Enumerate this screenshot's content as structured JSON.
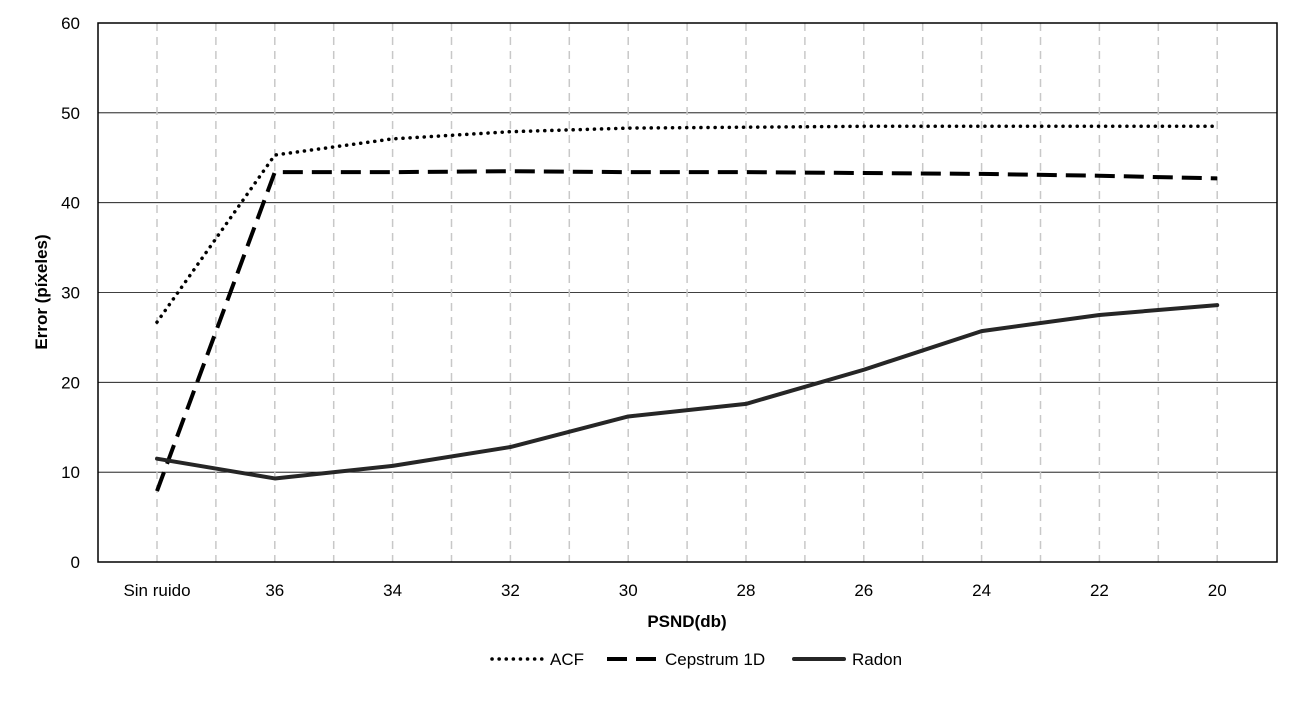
{
  "chart_data": {
    "type": "line",
    "title": "",
    "xlabel": "PSND(db)",
    "ylabel": "Error (píxeles)",
    "categories": [
      "Sin ruido",
      "36",
      "34",
      "32",
      "30",
      "28",
      "26",
      "24",
      "22",
      "20"
    ],
    "ylim": [
      0,
      60
    ],
    "yticks": [
      0,
      10,
      20,
      30,
      40,
      50,
      60
    ],
    "grid": {
      "horizontal": "solid",
      "vertical": "dashed, including midpoints"
    },
    "legend_position": "bottom",
    "series": [
      {
        "name": "ACF",
        "style": "dotted",
        "color": "#000000",
        "values": [
          26.7,
          45.3,
          47.1,
          47.9,
          48.3,
          48.4,
          48.5,
          48.5,
          48.5,
          48.5
        ]
      },
      {
        "name": "Cepstrum 1D",
        "style": "dashed",
        "color": "#000000",
        "values": [
          7.9,
          43.4,
          43.4,
          43.5,
          43.4,
          43.4,
          43.3,
          43.2,
          43.0,
          42.7
        ]
      },
      {
        "name": "Radon",
        "style": "solid",
        "color": "#262626",
        "values": [
          11.5,
          9.3,
          10.7,
          12.8,
          16.2,
          17.6,
          21.4,
          25.7,
          27.5,
          28.6
        ]
      }
    ]
  }
}
